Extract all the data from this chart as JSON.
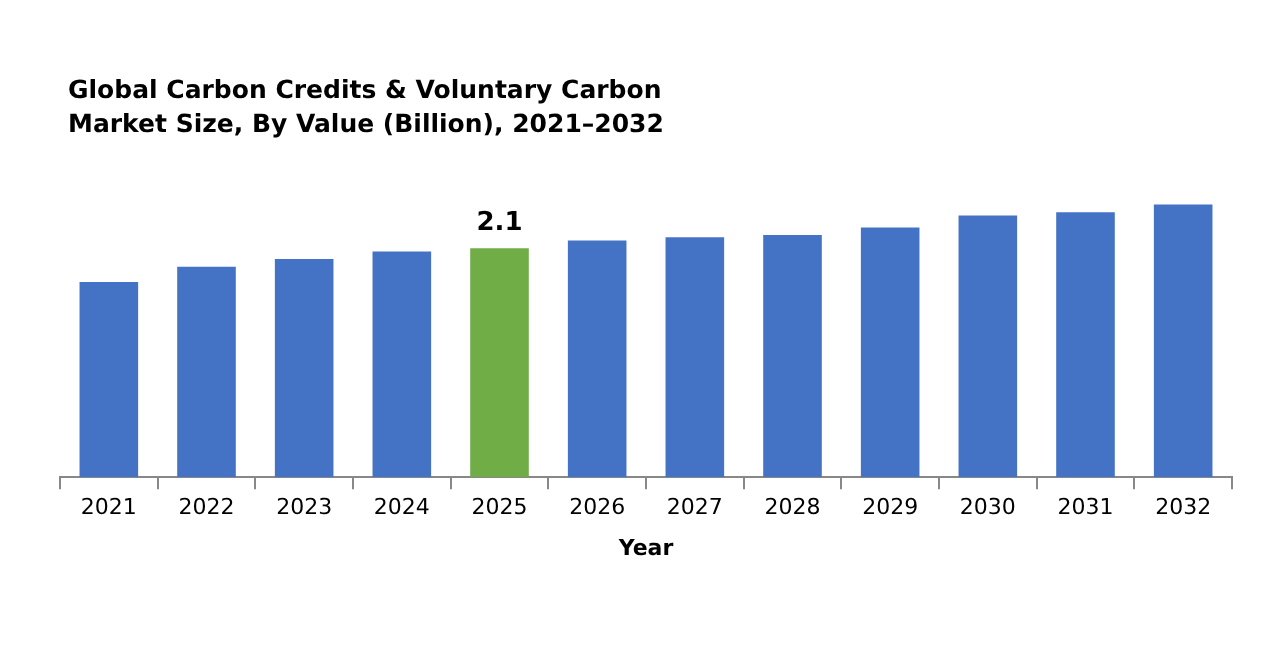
{
  "chart_data": {
    "type": "bar",
    "title": "Global Carbon Credits & Voluntary Carbon Market Size, By Value (Billion), 2021–2032",
    "xlabel": "Year",
    "categories": [
      "2021",
      "2022",
      "2023",
      "2024",
      "2025",
      "2026",
      "2027",
      "2028",
      "2029",
      "2030",
      "2031",
      "2032"
    ],
    "values": [
      1.79,
      1.93,
      2.0,
      2.07,
      2.1,
      2.17,
      2.2,
      2.22,
      2.29,
      2.4,
      2.43,
      2.5
    ],
    "colors": [
      "#4472c4",
      "#4472c4",
      "#4472c4",
      "#4472c4",
      "#70ad47",
      "#4472c4",
      "#4472c4",
      "#4472c4",
      "#4472c4",
      "#4472c4",
      "#4472c4",
      "#4472c4"
    ],
    "value_labels": [
      null,
      null,
      null,
      null,
      "2.1",
      null,
      null,
      null,
      null,
      null,
      null,
      null
    ],
    "grid": false,
    "legend": false
  }
}
